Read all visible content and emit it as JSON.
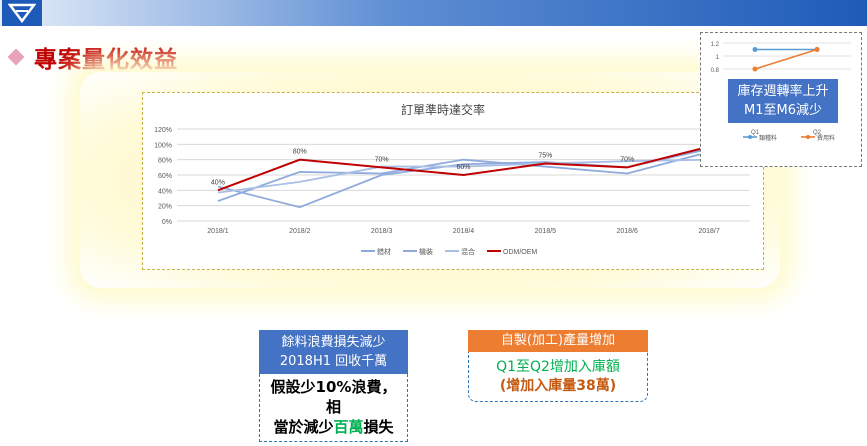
{
  "header": {
    "logo_icon": "brand-logo-icon"
  },
  "page": {
    "title": "專案量化效益"
  },
  "main_chart": {
    "title": "訂單準時達交率",
    "y_ticks": [
      "120%",
      "100%",
      "80%",
      "60%",
      "40%",
      "20%",
      "0%"
    ],
    "data_labels": [
      {
        "text": "40%",
        "month": "2018/1",
        "value": 40
      },
      {
        "text": "80%",
        "month": "2018/2",
        "value": 80
      },
      {
        "text": "70%",
        "month": "2018/3",
        "value": 70
      },
      {
        "text": "60%",
        "month": "2018/4",
        "value": 60
      },
      {
        "text": "75%",
        "month": "2018/5",
        "value": 75
      },
      {
        "text": "70%",
        "month": "2018/6",
        "value": 70
      }
    ]
  },
  "chart_data": {
    "type": "line",
    "title": "訂單準時達交率",
    "x": [
      "2018/1",
      "2018/2",
      "2018/3",
      "2018/4",
      "2018/5",
      "2018/6",
      "2018/7"
    ],
    "ylim": [
      0,
      1.2
    ],
    "grid": true,
    "legend_position": "bottom",
    "series": [
      {
        "name": "錯材",
        "color": "#8faadc",
        "values": [
          0.26,
          0.64,
          0.62,
          0.8,
          0.71,
          0.62,
          0.9
        ]
      },
      {
        "name": "機裝",
        "color": "#8faadc",
        "values": [
          0.45,
          0.18,
          0.6,
          0.74,
          0.77,
          0.7,
          0.94
        ]
      },
      {
        "name": "混合",
        "color": "#a9bfe6",
        "values": [
          0.37,
          0.51,
          0.71,
          0.71,
          0.75,
          0.78,
          0.8
        ]
      },
      {
        "name": "ODM/OEM",
        "color": "#c00000",
        "values": [
          0.4,
          0.8,
          0.7,
          0.6,
          0.75,
          0.7,
          0.97
        ]
      }
    ]
  },
  "inset_chart": {
    "y_ticks": [
      "1.2",
      "1",
      "0.8"
    ],
    "x_labels": [
      "Q1",
      "Q2"
    ],
    "series": [
      {
        "name": "類種料",
        "color": "#5b9bd5",
        "values": [
          1.1,
          1.1
        ]
      },
      {
        "name": "費用料",
        "color": "#ed7d31",
        "values": [
          0.8,
          1.1
        ]
      }
    ],
    "callout_line1": "庫存週轉率上升",
    "callout_line2": "M1至M6減少"
  },
  "scrap_box": {
    "head1": "餘料浪費損失減少",
    "head2": "2018H1 回收千萬",
    "body1": "假設少10%浪費，相",
    "body2a": "當於減少",
    "body2b": "百萬",
    "body2c": "損失"
  },
  "prod_box": {
    "head": "自製(加工)產量增加",
    "body1": "Q1至Q2增加入庫額",
    "body2": "(增加入庫量38萬)"
  }
}
